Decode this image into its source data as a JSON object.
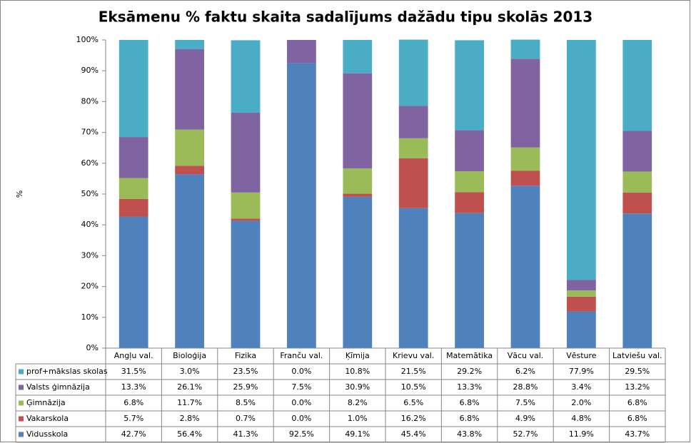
{
  "chart_data": {
    "type": "bar",
    "stacked": true,
    "title": "Eksāmenu % faktu skaita sadalījums dažādu tipu skolās 2013",
    "y_label": "%",
    "categories": [
      "Angļu val.",
      "Bioloģija",
      "Fizika",
      "Franču val.",
      "Ķīmija",
      "Krievu val.",
      "Matemātika",
      "Vācu val.",
      "Vēsture",
      "Latviešu val."
    ],
    "ylim": [
      0,
      100
    ],
    "yticks": [
      {
        "value": 0,
        "label": "0%"
      },
      {
        "value": 10,
        "label": "10%"
      },
      {
        "value": 20,
        "label": "20%"
      },
      {
        "value": 30,
        "label": "30%"
      },
      {
        "value": 40,
        "label": "40%"
      },
      {
        "value": 50,
        "label": "50%"
      },
      {
        "value": 60,
        "label": "60%"
      },
      {
        "value": 70,
        "label": "70%"
      },
      {
        "value": 80,
        "label": "80%"
      },
      {
        "value": 90,
        "label": "90%"
      },
      {
        "value": 100,
        "label": "100%"
      }
    ],
    "grid": false,
    "series": [
      {
        "name": "Vidusskola",
        "color": "#4f81bd",
        "values": [
          42.7,
          56.4,
          41.3,
          92.5,
          49.1,
          45.4,
          43.8,
          52.7,
          11.9,
          43.7
        ],
        "value_labels": [
          "42.7%",
          "56.4%",
          "41.3%",
          "92.5%",
          "49.1%",
          "45.4%",
          "43.8%",
          "52.7%",
          "11.9%",
          "43.7%"
        ]
      },
      {
        "name": "Vakarskola",
        "color": "#c0504d",
        "values": [
          5.7,
          2.8,
          0.7,
          0.0,
          1.0,
          16.2,
          6.8,
          4.9,
          4.8,
          6.8
        ],
        "value_labels": [
          "5.7%",
          "2.8%",
          "0.7%",
          "0.0%",
          "1.0%",
          "16.2%",
          "6.8%",
          "4.9%",
          "4.8%",
          "6.8%"
        ]
      },
      {
        "name": "Ģimnāzija",
        "color": "#9bbb59",
        "values": [
          6.8,
          11.7,
          8.5,
          0.0,
          8.2,
          6.5,
          6.8,
          7.5,
          2.0,
          6.8
        ],
        "value_labels": [
          "6.8%",
          "11.7%",
          "8.5%",
          "0.0%",
          "8.2%",
          "6.5%",
          "6.8%",
          "7.5%",
          "2.0%",
          "6.8%"
        ]
      },
      {
        "name": "Valsts ģimnāzija",
        "color": "#8064a2",
        "values": [
          13.3,
          26.1,
          25.9,
          7.5,
          30.9,
          10.5,
          13.3,
          28.8,
          3.4,
          13.2
        ],
        "value_labels": [
          "13.3%",
          "26.1%",
          "25.9%",
          "7.5%",
          "30.9%",
          "10.5%",
          "13.3%",
          "28.8%",
          "3.4%",
          "13.2%"
        ]
      },
      {
        "name": "prof+mākslas skolas",
        "color": "#4bacc6",
        "values": [
          31.5,
          3.0,
          23.5,
          0.0,
          10.8,
          21.5,
          29.2,
          6.2,
          77.9,
          29.5
        ],
        "value_labels": [
          "31.5%",
          "3.0%",
          "23.5%",
          "0.0%",
          "10.8%",
          "21.5%",
          "29.2%",
          "6.2%",
          "77.9%",
          "29.5%"
        ]
      }
    ]
  }
}
